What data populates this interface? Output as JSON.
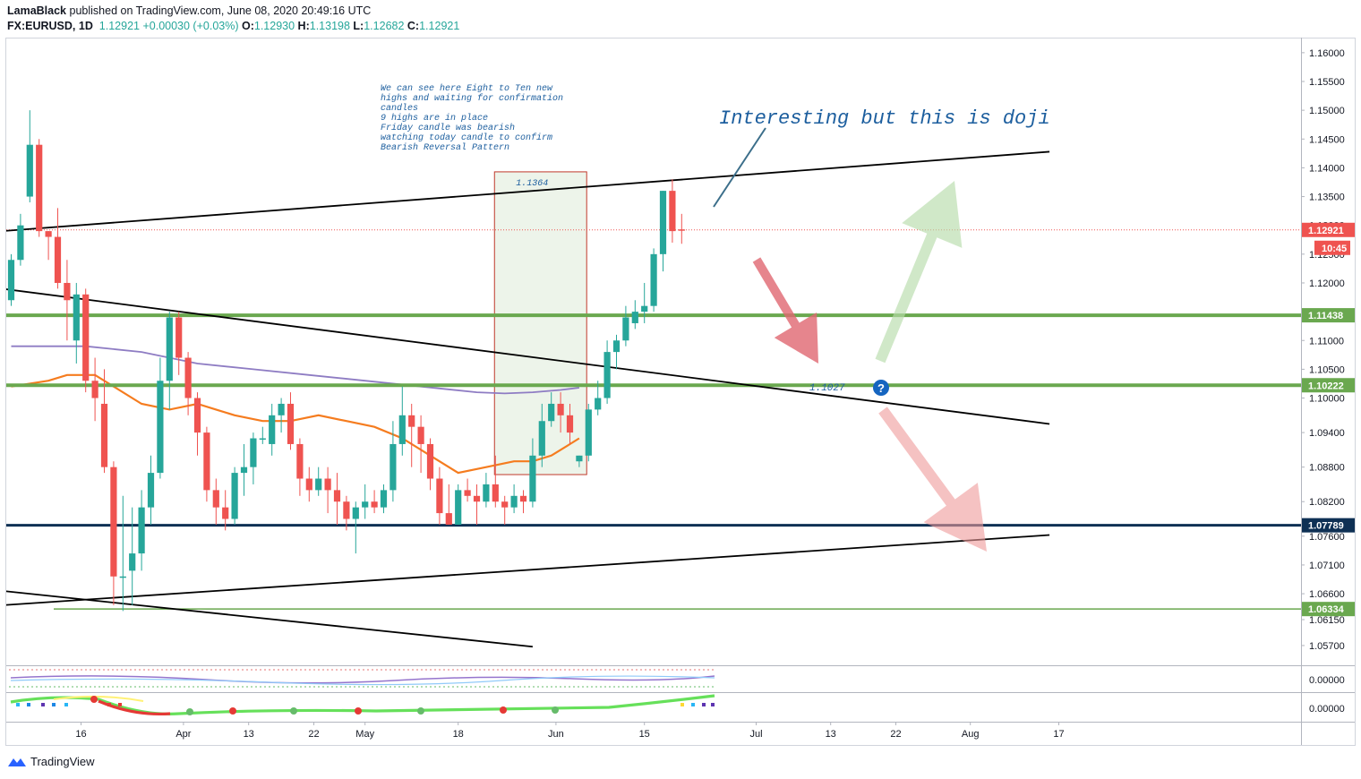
{
  "header": {
    "author": "LamaBlack",
    "published_text": "published on TradingView.com, June 08, 2020 20:49:16 UTC",
    "symbol": "FX:EURUSD, 1D",
    "last": "1.12921",
    "change": "+0.00030 (+0.03%)",
    "o_label": "O:",
    "o": "1.12930",
    "h_label": "H:",
    "h": "1.13198",
    "l_label": "L:",
    "l": "1.12682",
    "c_label": "C:",
    "c": "1.12921"
  },
  "footer": {
    "brand": "TradingView"
  },
  "colors": {
    "up": "#26a69a",
    "down": "#ef5350",
    "green_level": "#6aa84f",
    "navy_level": "#0e3054",
    "ma_orange": "#f57c1f",
    "ma_purple": "#8e7cc3",
    "annotation": "#1c5e9e"
  },
  "chart_data": {
    "type": "candlestick",
    "symbol": "FX:EURUSD",
    "interval": "1D",
    "ylim": [
      1.0545,
      1.162
    ],
    "y_ticks": [
      1.16,
      1.155,
      1.15,
      1.145,
      1.14,
      1.135,
      1.13,
      1.125,
      1.12,
      1.11,
      1.105,
      1.1,
      1.094,
      1.088,
      1.082,
      1.076,
      1.071,
      1.066,
      1.0615,
      1.057
    ],
    "y_tick_labels": [
      "1.16000",
      "1.15500",
      "1.15000",
      "1.14500",
      "1.14000",
      "1.13500",
      "1.13000",
      "1.12500",
      "1.12000",
      "1.11000",
      "1.10500",
      "1.10000",
      "1.09400",
      "1.08800",
      "1.08200",
      "1.07600",
      "1.07100",
      "1.06600",
      "1.06150",
      "1.05700"
    ],
    "x_labels": [
      "16",
      "Apr",
      "13",
      "22",
      "May",
      "18",
      "Jun",
      "15",
      "Jul",
      "13",
      "22",
      "Aug",
      "17"
    ],
    "x_label_bars": [
      7.5,
      18.5,
      25.5,
      32.5,
      38.0,
      48.0,
      58.5,
      68.0,
      80.0,
      88.0,
      95.0,
      103.0,
      112.5
    ],
    "candles": [
      [
        1.117,
        1.124,
        1.116,
        1.125
      ],
      [
        1.124,
        1.13,
        1.123,
        1.132
      ],
      [
        1.135,
        1.144,
        1.134,
        1.15
      ],
      [
        1.144,
        1.129,
        1.128,
        1.145
      ],
      [
        1.129,
        1.128,
        1.124,
        1.129
      ],
      [
        1.128,
        1.12,
        1.119,
        1.133
      ],
      [
        1.12,
        1.117,
        1.11,
        1.124
      ],
      [
        1.11,
        1.118,
        1.106,
        1.12
      ],
      [
        1.118,
        1.103,
        1.101,
        1.119
      ],
      [
        1.103,
        1.1,
        1.096,
        1.107
      ],
      [
        1.099,
        1.088,
        1.087,
        1.105
      ],
      [
        1.088,
        1.069,
        1.064,
        1.089
      ],
      [
        1.069,
        1.069,
        1.063,
        1.083
      ],
      [
        1.07,
        1.073,
        1.064,
        1.081
      ],
      [
        1.073,
        1.081,
        1.07,
        1.084
      ],
      [
        1.081,
        1.087,
        1.078,
        1.09
      ],
      [
        1.087,
        1.103,
        1.086,
        1.107
      ],
      [
        1.103,
        1.114,
        1.098,
        1.115
      ],
      [
        1.114,
        1.107,
        1.104,
        1.115
      ],
      [
        1.107,
        1.1,
        1.097,
        1.108
      ],
      [
        1.1,
        1.094,
        1.09,
        1.101
      ],
      [
        1.094,
        1.084,
        1.082,
        1.095
      ],
      [
        1.084,
        1.081,
        1.078,
        1.086
      ],
      [
        1.081,
        1.079,
        1.077,
        1.084
      ],
      [
        1.079,
        1.087,
        1.078,
        1.088
      ],
      [
        1.087,
        1.088,
        1.083,
        1.092
      ],
      [
        1.088,
        1.093,
        1.085,
        1.094
      ],
      [
        1.093,
        1.093,
        1.092,
        1.095
      ],
      [
        1.092,
        1.097,
        1.09,
        1.099
      ],
      [
        1.097,
        1.099,
        1.094,
        1.1
      ],
      [
        1.099,
        1.092,
        1.091,
        1.101
      ],
      [
        1.092,
        1.086,
        1.083,
        1.093
      ],
      [
        1.086,
        1.084,
        1.082,
        1.088
      ],
      [
        1.084,
        1.086,
        1.083,
        1.088
      ],
      [
        1.086,
        1.084,
        1.08,
        1.088
      ],
      [
        1.084,
        1.082,
        1.078,
        1.087
      ],
      [
        1.082,
        1.079,
        1.077,
        1.083
      ],
      [
        1.079,
        1.081,
        1.073,
        1.082
      ],
      [
        1.081,
        1.082,
        1.079,
        1.085
      ],
      [
        1.082,
        1.081,
        1.08,
        1.084
      ],
      [
        1.081,
        1.084,
        1.08,
        1.085
      ],
      [
        1.084,
        1.092,
        1.082,
        1.096
      ],
      [
        1.092,
        1.097,
        1.09,
        1.102
      ],
      [
        1.097,
        1.095,
        1.088,
        1.099
      ],
      [
        1.095,
        1.092,
        1.087,
        1.097
      ],
      [
        1.092,
        1.086,
        1.084,
        1.093
      ],
      [
        1.086,
        1.08,
        1.078,
        1.088
      ],
      [
        1.08,
        1.078,
        1.078,
        1.085
      ],
      [
        1.078,
        1.084,
        1.078,
        1.085
      ],
      [
        1.084,
        1.083,
        1.082,
        1.086
      ],
      [
        1.083,
        1.082,
        1.078,
        1.085
      ],
      [
        1.082,
        1.085,
        1.081,
        1.087
      ],
      [
        1.085,
        1.082,
        1.081,
        1.09
      ],
      [
        1.082,
        1.081,
        1.078,
        1.083
      ],
      [
        1.081,
        1.083,
        1.08,
        1.085
      ],
      [
        1.083,
        1.082,
        1.08,
        1.084
      ],
      [
        1.082,
        1.09,
        1.081,
        1.093
      ],
      [
        1.09,
        1.096,
        1.088,
        1.099
      ],
      [
        1.096,
        1.099,
        1.095,
        1.101
      ],
      [
        1.099,
        1.097,
        1.094,
        1.101
      ],
      [
        1.097,
        1.094,
        1.092,
        1.099
      ],
      [
        1.089,
        1.09,
        1.088,
        1.09
      ],
      [
        1.09,
        1.098,
        1.089,
        1.099
      ],
      [
        1.098,
        1.1,
        1.097,
        1.103
      ],
      [
        1.1,
        1.108,
        1.099,
        1.11
      ],
      [
        1.108,
        1.11,
        1.105,
        1.111
      ],
      [
        1.11,
        1.114,
        1.109,
        1.116
      ],
      [
        1.113,
        1.115,
        1.112,
        1.117
      ],
      [
        1.115,
        1.116,
        1.113,
        1.12
      ],
      [
        1.116,
        1.125,
        1.115,
        1.126
      ],
      [
        1.125,
        1.136,
        1.122,
        1.136
      ],
      [
        1.136,
        1.129,
        1.127,
        1.138
      ],
      [
        1.1293,
        1.1292,
        1.1268,
        1.132
      ]
    ],
    "moving_averages": [
      {
        "name": "MA fast",
        "color": "#f57c1f",
        "points": [
          [
            0,
            1.102
          ],
          [
            4,
            1.103
          ],
          [
            6,
            1.104
          ],
          [
            9,
            1.104
          ],
          [
            11,
            1.102
          ],
          [
            14,
            1.099
          ],
          [
            17,
            1.098
          ],
          [
            20,
            1.099
          ],
          [
            22,
            1.098
          ],
          [
            24,
            1.097
          ],
          [
            27,
            1.096
          ],
          [
            30,
            1.096
          ],
          [
            33,
            1.097
          ],
          [
            36,
            1.096
          ],
          [
            39,
            1.095
          ],
          [
            42,
            1.093
          ],
          [
            45,
            1.09
          ],
          [
            48,
            1.087
          ],
          [
            51,
            1.088
          ],
          [
            54,
            1.089
          ],
          [
            56,
            1.089
          ],
          [
            58,
            1.09
          ],
          [
            60,
            1.092
          ],
          [
            61,
            1.093
          ]
        ]
      },
      {
        "name": "MA slow",
        "color": "#8e7cc3",
        "points": [
          [
            0,
            1.109
          ],
          [
            3,
            1.109
          ],
          [
            8,
            1.109
          ],
          [
            14,
            1.108
          ],
          [
            20,
            1.106
          ],
          [
            26,
            1.105
          ],
          [
            32,
            1.104
          ],
          [
            38,
            1.103
          ],
          [
            44,
            1.102
          ],
          [
            50,
            1.101
          ],
          [
            53,
            1.1008
          ],
          [
            56,
            1.101
          ],
          [
            59,
            1.1014
          ],
          [
            61,
            1.1018
          ]
        ]
      }
    ],
    "levels": [
      {
        "value": 1.11438,
        "label": "1.11438",
        "color": "#6aa84f"
      },
      {
        "value": 1.10222,
        "label": "1.10222",
        "color": "#6aa84f"
      },
      {
        "value": 1.07789,
        "label": "1.07789",
        "color": "#0e3054"
      },
      {
        "value": 1.06334,
        "label": "1.06334",
        "color": "#6aa84f"
      }
    ],
    "last_price": {
      "value": 1.12921,
      "label": "1.12921",
      "countdown": "10:45"
    },
    "trendlines": [
      {
        "from": [
          -1,
          1.129
        ],
        "to": [
          111.5,
          1.1428
        ]
      },
      {
        "from": [
          -1,
          1.119
        ],
        "to": [
          111.5,
          1.0955
        ]
      },
      {
        "from": [
          -1,
          1.064
        ],
        "to": [
          111.5,
          1.0762
        ]
      },
      {
        "from": [
          -1,
          1.0665
        ],
        "to": [
          56,
          1.0568
        ]
      }
    ],
    "highlight_box": {
      "from_bar": 51.9,
      "to_bar": 61.8,
      "top": 1.1393,
      "bottom": 1.0867,
      "label": "1.1364"
    },
    "annotations": {
      "note_lines": [
        "We can see here Eight to Ten new",
        "highs and waiting for confirmation",
        "candles",
        "9 highs are in place",
        "Friday candle was bearish",
        "watching today candle to confirm",
        "Bearish Reversal Pattern"
      ],
      "headline": "Interesting but this is doji",
      "target_label": "1.1027",
      "question_mark": "?"
    },
    "oscillator_zero_labels": [
      "0.00000",
      "0.00000"
    ]
  }
}
